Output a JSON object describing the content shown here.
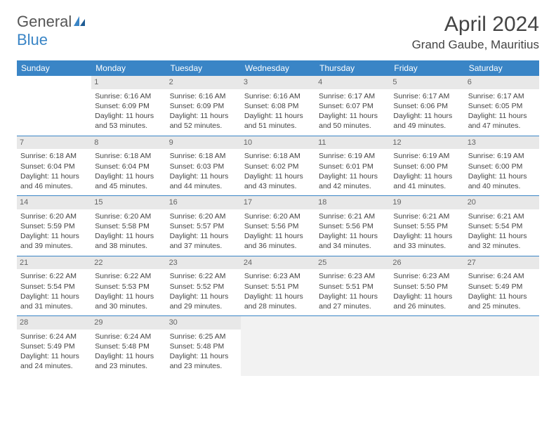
{
  "logo": {
    "text1": "General",
    "text2": "Blue"
  },
  "title": "April 2024",
  "location": "Grand Gaube, Mauritius",
  "columns": [
    "Sunday",
    "Monday",
    "Tuesday",
    "Wednesday",
    "Thursday",
    "Friday",
    "Saturday"
  ],
  "colors": {
    "header_bg": "#3a85c6",
    "daynum_bg": "#e8e8e8",
    "border": "#3a85c6"
  },
  "weeks": [
    [
      {
        "n": "",
        "l1": "",
        "l2": "",
        "l3": "",
        "l4": "",
        "empty": true
      },
      {
        "n": "1",
        "l1": "Sunrise: 6:16 AM",
        "l2": "Sunset: 6:09 PM",
        "l3": "Daylight: 11 hours",
        "l4": "and 53 minutes."
      },
      {
        "n": "2",
        "l1": "Sunrise: 6:16 AM",
        "l2": "Sunset: 6:09 PM",
        "l3": "Daylight: 11 hours",
        "l4": "and 52 minutes."
      },
      {
        "n": "3",
        "l1": "Sunrise: 6:16 AM",
        "l2": "Sunset: 6:08 PM",
        "l3": "Daylight: 11 hours",
        "l4": "and 51 minutes."
      },
      {
        "n": "4",
        "l1": "Sunrise: 6:17 AM",
        "l2": "Sunset: 6:07 PM",
        "l3": "Daylight: 11 hours",
        "l4": "and 50 minutes."
      },
      {
        "n": "5",
        "l1": "Sunrise: 6:17 AM",
        "l2": "Sunset: 6:06 PM",
        "l3": "Daylight: 11 hours",
        "l4": "and 49 minutes."
      },
      {
        "n": "6",
        "l1": "Sunrise: 6:17 AM",
        "l2": "Sunset: 6:05 PM",
        "l3": "Daylight: 11 hours",
        "l4": "and 47 minutes."
      }
    ],
    [
      {
        "n": "7",
        "l1": "Sunrise: 6:18 AM",
        "l2": "Sunset: 6:04 PM",
        "l3": "Daylight: 11 hours",
        "l4": "and 46 minutes."
      },
      {
        "n": "8",
        "l1": "Sunrise: 6:18 AM",
        "l2": "Sunset: 6:04 PM",
        "l3": "Daylight: 11 hours",
        "l4": "and 45 minutes."
      },
      {
        "n": "9",
        "l1": "Sunrise: 6:18 AM",
        "l2": "Sunset: 6:03 PM",
        "l3": "Daylight: 11 hours",
        "l4": "and 44 minutes."
      },
      {
        "n": "10",
        "l1": "Sunrise: 6:18 AM",
        "l2": "Sunset: 6:02 PM",
        "l3": "Daylight: 11 hours",
        "l4": "and 43 minutes."
      },
      {
        "n": "11",
        "l1": "Sunrise: 6:19 AM",
        "l2": "Sunset: 6:01 PM",
        "l3": "Daylight: 11 hours",
        "l4": "and 42 minutes."
      },
      {
        "n": "12",
        "l1": "Sunrise: 6:19 AM",
        "l2": "Sunset: 6:00 PM",
        "l3": "Daylight: 11 hours",
        "l4": "and 41 minutes."
      },
      {
        "n": "13",
        "l1": "Sunrise: 6:19 AM",
        "l2": "Sunset: 6:00 PM",
        "l3": "Daylight: 11 hours",
        "l4": "and 40 minutes."
      }
    ],
    [
      {
        "n": "14",
        "l1": "Sunrise: 6:20 AM",
        "l2": "Sunset: 5:59 PM",
        "l3": "Daylight: 11 hours",
        "l4": "and 39 minutes."
      },
      {
        "n": "15",
        "l1": "Sunrise: 6:20 AM",
        "l2": "Sunset: 5:58 PM",
        "l3": "Daylight: 11 hours",
        "l4": "and 38 minutes."
      },
      {
        "n": "16",
        "l1": "Sunrise: 6:20 AM",
        "l2": "Sunset: 5:57 PM",
        "l3": "Daylight: 11 hours",
        "l4": "and 37 minutes."
      },
      {
        "n": "17",
        "l1": "Sunrise: 6:20 AM",
        "l2": "Sunset: 5:56 PM",
        "l3": "Daylight: 11 hours",
        "l4": "and 36 minutes."
      },
      {
        "n": "18",
        "l1": "Sunrise: 6:21 AM",
        "l2": "Sunset: 5:56 PM",
        "l3": "Daylight: 11 hours",
        "l4": "and 34 minutes."
      },
      {
        "n": "19",
        "l1": "Sunrise: 6:21 AM",
        "l2": "Sunset: 5:55 PM",
        "l3": "Daylight: 11 hours",
        "l4": "and 33 minutes."
      },
      {
        "n": "20",
        "l1": "Sunrise: 6:21 AM",
        "l2": "Sunset: 5:54 PM",
        "l3": "Daylight: 11 hours",
        "l4": "and 32 minutes."
      }
    ],
    [
      {
        "n": "21",
        "l1": "Sunrise: 6:22 AM",
        "l2": "Sunset: 5:54 PM",
        "l3": "Daylight: 11 hours",
        "l4": "and 31 minutes."
      },
      {
        "n": "22",
        "l1": "Sunrise: 6:22 AM",
        "l2": "Sunset: 5:53 PM",
        "l3": "Daylight: 11 hours",
        "l4": "and 30 minutes."
      },
      {
        "n": "23",
        "l1": "Sunrise: 6:22 AM",
        "l2": "Sunset: 5:52 PM",
        "l3": "Daylight: 11 hours",
        "l4": "and 29 minutes."
      },
      {
        "n": "24",
        "l1": "Sunrise: 6:23 AM",
        "l2": "Sunset: 5:51 PM",
        "l3": "Daylight: 11 hours",
        "l4": "and 28 minutes."
      },
      {
        "n": "25",
        "l1": "Sunrise: 6:23 AM",
        "l2": "Sunset: 5:51 PM",
        "l3": "Daylight: 11 hours",
        "l4": "and 27 minutes."
      },
      {
        "n": "26",
        "l1": "Sunrise: 6:23 AM",
        "l2": "Sunset: 5:50 PM",
        "l3": "Daylight: 11 hours",
        "l4": "and 26 minutes."
      },
      {
        "n": "27",
        "l1": "Sunrise: 6:24 AM",
        "l2": "Sunset: 5:49 PM",
        "l3": "Daylight: 11 hours",
        "l4": "and 25 minutes."
      }
    ],
    [
      {
        "n": "28",
        "l1": "Sunrise: 6:24 AM",
        "l2": "Sunset: 5:49 PM",
        "l3": "Daylight: 11 hours",
        "l4": "and 24 minutes."
      },
      {
        "n": "29",
        "l1": "Sunrise: 6:24 AM",
        "l2": "Sunset: 5:48 PM",
        "l3": "Daylight: 11 hours",
        "l4": "and 23 minutes."
      },
      {
        "n": "30",
        "l1": "Sunrise: 6:25 AM",
        "l2": "Sunset: 5:48 PM",
        "l3": "Daylight: 11 hours",
        "l4": "and 23 minutes."
      },
      {
        "n": "",
        "l1": "",
        "l2": "",
        "l3": "",
        "l4": "",
        "trailing": true
      },
      {
        "n": "",
        "l1": "",
        "l2": "",
        "l3": "",
        "l4": "",
        "trailing": true
      },
      {
        "n": "",
        "l1": "",
        "l2": "",
        "l3": "",
        "l4": "",
        "trailing": true
      },
      {
        "n": "",
        "l1": "",
        "l2": "",
        "l3": "",
        "l4": "",
        "trailing": true
      }
    ]
  ]
}
